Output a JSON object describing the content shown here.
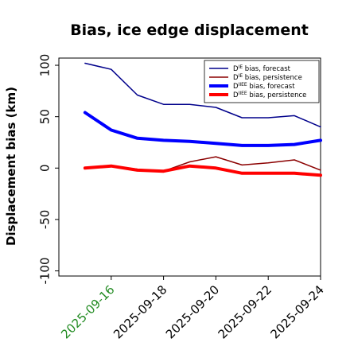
{
  "colors": {
    "forecast_line": "#00008b",
    "persistence_line": "#8b0000",
    "forecast_bold": "#0000ff",
    "persistence_bold": "#ff0000",
    "highlight_date": "#228b22"
  },
  "chart_data": {
    "type": "line",
    "title": "Bias, ice edge displacement",
    "xlabel": "",
    "ylabel": "Displacement bias (km)",
    "ylim": [
      -105,
      107
    ],
    "yticks": [
      "100",
      "50",
      "0",
      "-50",
      "-100"
    ],
    "ytick_values": [
      100,
      50,
      0,
      -50,
      -100
    ],
    "xlim": [
      "2025-09-14T00:00",
      "2025-09-24T00:00"
    ],
    "xticks": [
      "2025-09-16",
      "2025-09-18",
      "2025-09-20",
      "2025-09-22",
      "2025-09-24"
    ],
    "highlighted_xtick": "2025-09-16",
    "grid": false,
    "legend_position": "top-right",
    "x": [
      "2025-09-15",
      "2025-09-16",
      "2025-09-17",
      "2025-09-18",
      "2025-09-19",
      "2025-09-20",
      "2025-09-21",
      "2025-09-22",
      "2025-09-23",
      "2025-09-24"
    ],
    "series": [
      {
        "name_base": "D",
        "name_sup": "IE",
        "name_rest": " bias, forecast",
        "style": "thin",
        "color": "#00008b",
        "values": [
          102,
          96,
          71,
          62,
          62,
          59,
          49,
          49,
          51,
          40
        ]
      },
      {
        "name_base": "D",
        "name_sup": "IE",
        "name_rest": " bias, persistence",
        "style": "thin",
        "color": "#8b0000",
        "values": [
          0,
          2,
          -1,
          -3,
          6,
          11,
          3,
          5,
          8,
          -2
        ]
      },
      {
        "name_base": "D",
        "name_sup": "IIEE",
        "name_rest": " bias, forecast",
        "style": "bold",
        "color": "#0000ff",
        "values": [
          54,
          37,
          29,
          27,
          26,
          24,
          22,
          22,
          23,
          27
        ]
      },
      {
        "name_base": "D",
        "name_sup": "IIEE",
        "name_rest": " bias, persistence",
        "style": "bold",
        "color": "#ff0000",
        "values": [
          0,
          2,
          -2,
          -3,
          2,
          0,
          -5,
          -5,
          -5,
          -7
        ]
      }
    ]
  }
}
